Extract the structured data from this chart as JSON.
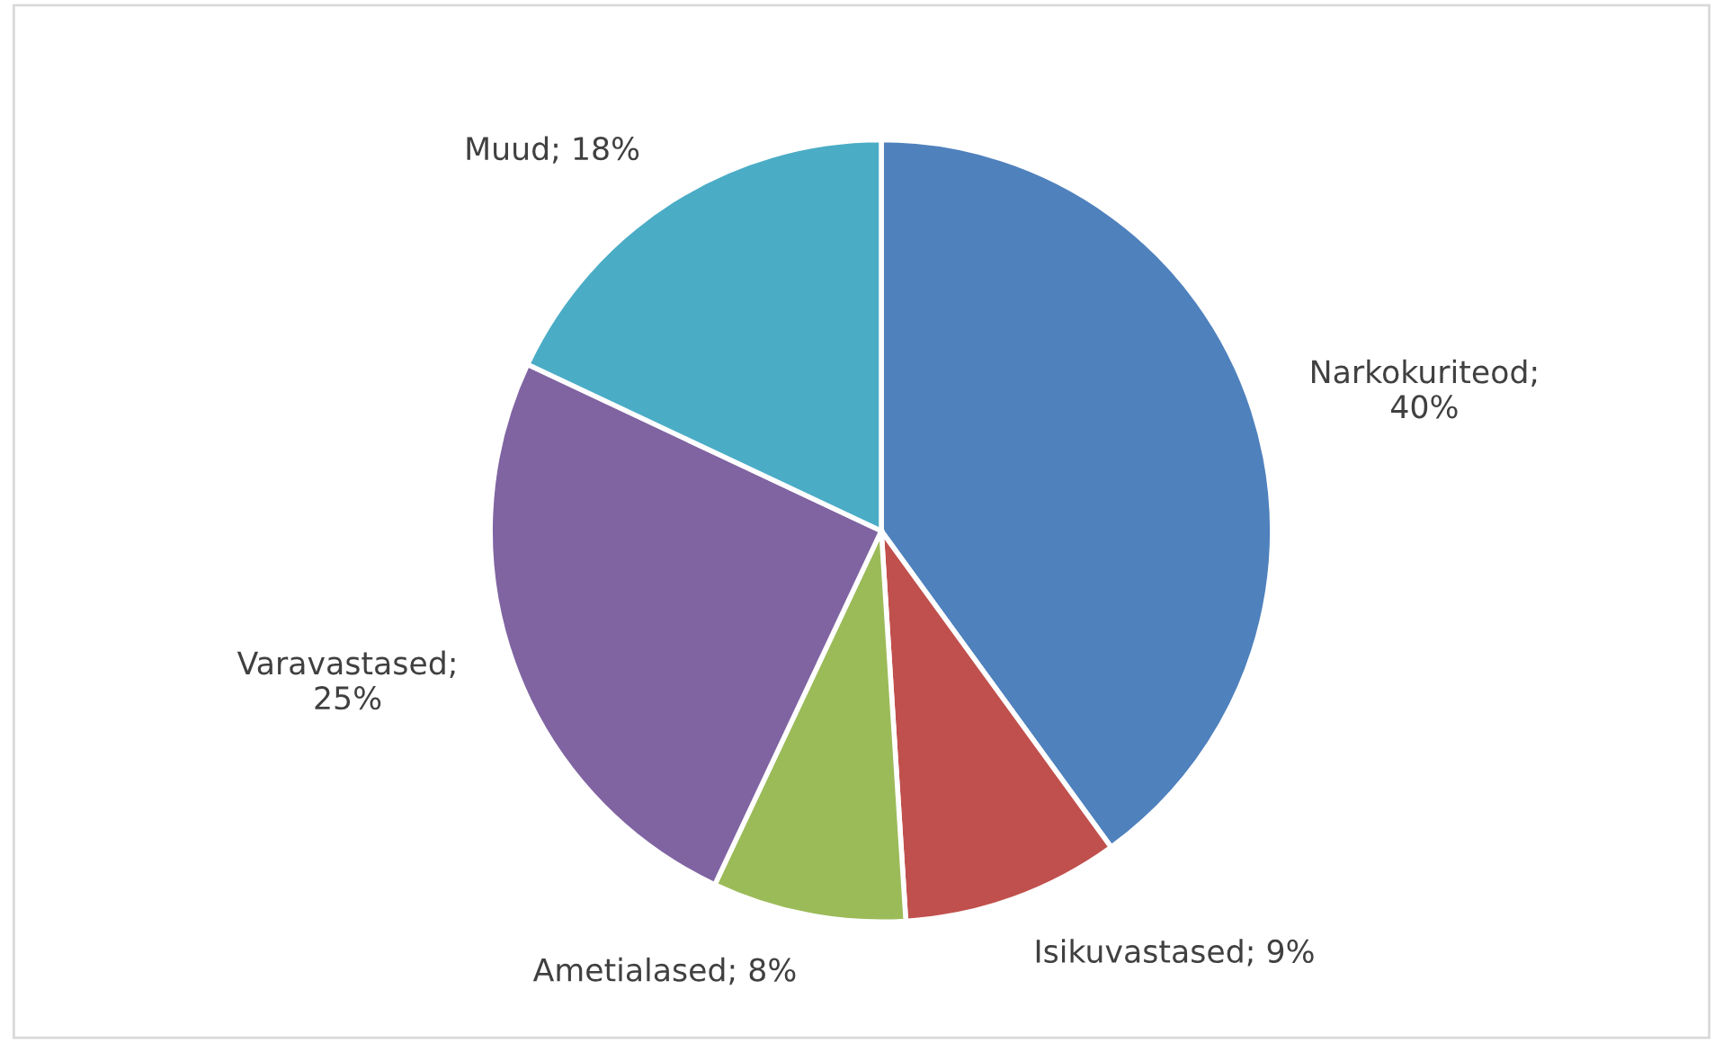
{
  "chart_data": {
    "type": "pie",
    "categories": [
      "Narkokuriteod",
      "Isikuvastased",
      "Ametialased",
      "Varavastased",
      "Muud"
    ],
    "values": [
      40,
      9,
      8,
      25,
      18
    ],
    "colors": [
      "#4f81bd",
      "#c0504d",
      "#9bbb59",
      "#8064a2",
      "#4bacc6"
    ],
    "value_labels": [
      ";\n40%",
      "; 9%",
      "; 8%",
      ";\n25%",
      "; 18%"
    ],
    "legend": false
  }
}
